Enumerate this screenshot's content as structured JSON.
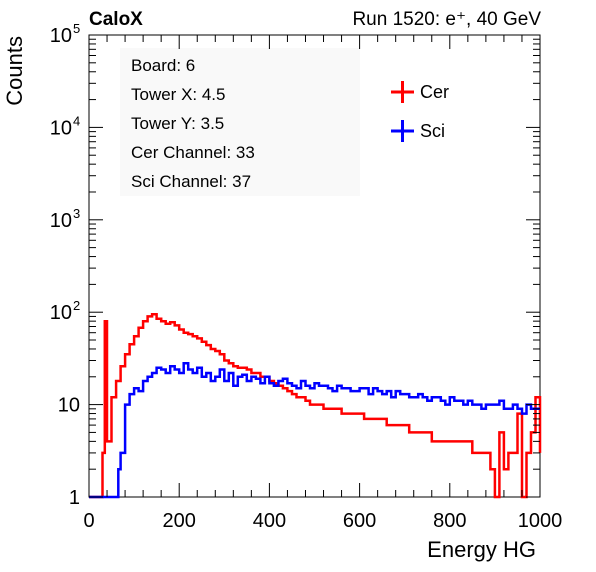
{
  "chart_data": {
    "type": "line",
    "header_left": "CaloX",
    "header_right": "Run 1520: e⁺, 40 GeV",
    "xlabel": "Energy HG",
    "ylabel": "Counts",
    "xlim": [
      0,
      1000
    ],
    "ylim": [
      1,
      100000
    ],
    "yscale": "log",
    "grid": false,
    "x_ticks": [
      "0",
      "200",
      "400",
      "600",
      "800",
      "1000"
    ],
    "y_ticks": [
      {
        "value": 1,
        "base": "1",
        "exp": ""
      },
      {
        "value": 10,
        "base": "10",
        "exp": ""
      },
      {
        "value": 100,
        "base": "10",
        "exp": "2"
      },
      {
        "value": 1000,
        "base": "10",
        "exp": "3"
      },
      {
        "value": 10000,
        "base": "10",
        "exp": "4"
      },
      {
        "value": 100000,
        "base": "10",
        "exp": "5"
      }
    ],
    "info_box": [
      "Board: 6",
      "Tower X: 4.5",
      "Tower Y: 3.5",
      "Cer Channel: 33",
      "Sci Channel: 37"
    ],
    "legend_position": "top-right",
    "series": [
      {
        "name": "Cer",
        "color": "#ff0000",
        "x": [
          0,
          25,
          30,
          35,
          40,
          50,
          60,
          70,
          80,
          90,
          100,
          110,
          120,
          130,
          140,
          150,
          160,
          170,
          180,
          190,
          200,
          210,
          220,
          230,
          240,
          250,
          260,
          270,
          280,
          290,
          300,
          310,
          320,
          330,
          340,
          350,
          360,
          370,
          380,
          390,
          400,
          410,
          420,
          430,
          440,
          450,
          460,
          470,
          480,
          490,
          500,
          510,
          520,
          530,
          540,
          550,
          560,
          570,
          580,
          590,
          600,
          610,
          620,
          630,
          640,
          650,
          660,
          670,
          680,
          690,
          700,
          710,
          720,
          730,
          740,
          750,
          760,
          770,
          780,
          790,
          800,
          810,
          820,
          830,
          840,
          850,
          860,
          870,
          880,
          890,
          900,
          910,
          920,
          930,
          940,
          950,
          960,
          970,
          980,
          990,
          1000
        ],
        "values": [
          1,
          1,
          3,
          80,
          4,
          12,
          18,
          26,
          35,
          45,
          55,
          68,
          80,
          90,
          95,
          85,
          80,
          75,
          78,
          72,
          65,
          60,
          58,
          55,
          52,
          48,
          44,
          40,
          38,
          35,
          30,
          28,
          26,
          25,
          25,
          24,
          22,
          22,
          20,
          20,
          18,
          17,
          16,
          15,
          14,
          13,
          12,
          12,
          11,
          10,
          10,
          10,
          9,
          9,
          9,
          9,
          8,
          8,
          8,
          8,
          8,
          7,
          7,
          7,
          7,
          7,
          6,
          6,
          6,
          6,
          6,
          5,
          5,
          5,
          5,
          5,
          4,
          4,
          4,
          4,
          4,
          4,
          4,
          4,
          4,
          3,
          3,
          3,
          3,
          2,
          1,
          5,
          2,
          3,
          3,
          8,
          1,
          3,
          5,
          12,
          3
        ]
      },
      {
        "name": "Sci",
        "color": "#0000ff",
        "x": [
          0,
          50,
          60,
          65,
          70,
          80,
          90,
          100,
          110,
          120,
          130,
          140,
          150,
          160,
          170,
          180,
          190,
          200,
          210,
          220,
          230,
          240,
          250,
          260,
          270,
          280,
          290,
          300,
          310,
          320,
          330,
          340,
          350,
          360,
          370,
          380,
          390,
          400,
          410,
          420,
          430,
          440,
          450,
          460,
          470,
          480,
          490,
          500,
          510,
          520,
          530,
          540,
          550,
          560,
          570,
          580,
          590,
          600,
          610,
          620,
          630,
          640,
          650,
          660,
          670,
          680,
          690,
          700,
          710,
          720,
          730,
          740,
          750,
          760,
          770,
          780,
          790,
          800,
          810,
          820,
          830,
          840,
          850,
          860,
          870,
          880,
          890,
          900,
          910,
          920,
          930,
          940,
          950,
          960,
          970,
          980,
          990,
          1000
        ],
        "values": [
          1,
          1,
          1,
          2,
          3,
          10,
          13,
          15,
          14,
          18,
          20,
          22,
          25,
          24,
          22,
          26,
          24,
          22,
          28,
          24,
          22,
          25,
          20,
          22,
          18,
          20,
          24,
          18,
          22,
          16,
          20,
          21,
          18,
          20,
          19,
          17,
          20,
          17,
          16,
          18,
          19,
          17,
          16,
          15,
          18,
          16,
          15,
          17,
          16,
          16,
          15,
          14,
          16,
          15,
          15,
          14,
          14,
          15,
          15,
          13,
          15,
          14,
          13,
          14,
          12,
          14,
          13,
          13,
          12,
          12,
          13,
          12,
          11,
          12,
          12,
          11,
          10,
          12,
          11,
          11,
          10,
          11,
          10,
          10,
          9,
          10,
          10,
          10,
          11,
          9,
          9,
          10,
          9,
          8,
          10,
          9,
          9,
          9
        ]
      }
    ]
  }
}
